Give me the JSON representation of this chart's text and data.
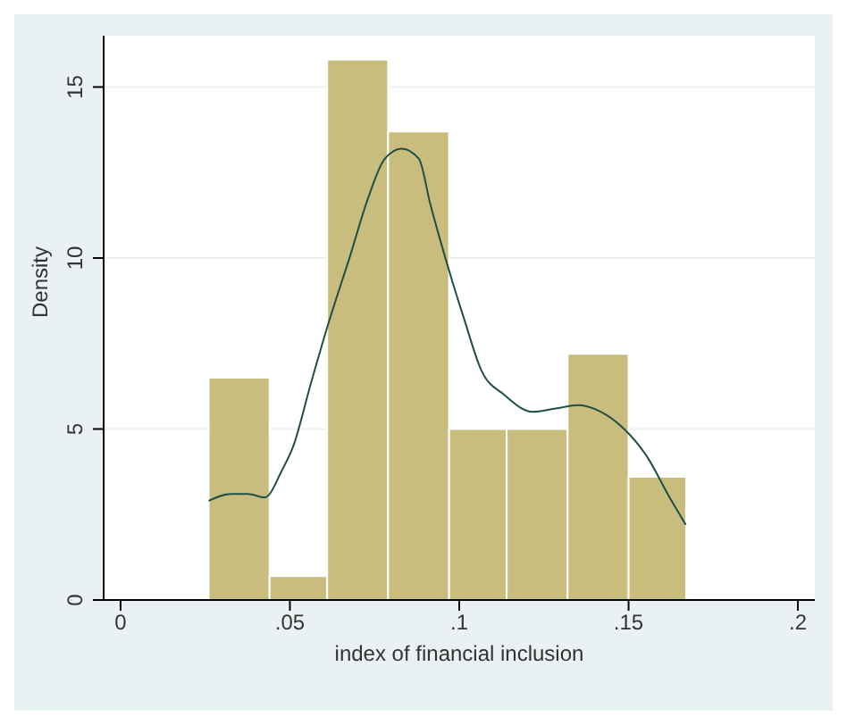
{
  "chart_data": {
    "type": "histogram",
    "xlabel": "index of financial inclusion",
    "ylabel": "Density",
    "bins": [
      0.026,
      0.044,
      0.061,
      0.079,
      0.097,
      0.114,
      0.132,
      0.15,
      0.167
    ],
    "values": [
      6.5,
      0.7,
      15.8,
      13.7,
      5.0,
      5.0,
      7.2,
      3.6
    ],
    "color": "#c9bd7e",
    "series": [
      {
        "type": "line",
        "color": "#1f4f45",
        "x": [
          0.026,
          0.0325,
          0.0376,
          0.0426,
          0.0477,
          0.051,
          0.0561,
          0.0611,
          0.0679,
          0.0729,
          0.078,
          0.083,
          0.0881,
          0.0914,
          0.0965,
          0.1015,
          0.1066,
          0.1133,
          0.1217,
          0.1285,
          0.1352,
          0.1419,
          0.1487,
          0.1554,
          0.1621,
          0.1669
        ],
        "values": [
          2.9,
          3.1,
          3.1,
          3.0,
          3.8,
          4.5,
          6.3,
          8.0,
          10.1,
          11.7,
          12.9,
          13.2,
          12.9,
          11.6,
          9.8,
          8.2,
          6.7,
          6.0,
          5.5,
          5.6,
          5.7,
          5.5,
          5.0,
          4.2,
          3.0,
          2.2
        ]
      }
    ],
    "xlim": [
      -0.005,
      0.205
    ],
    "xticks": [
      0,
      {
        "value": 0.05,
        "label": ".05"
      },
      {
        "value": 0.1,
        "label": ".1"
      },
      {
        "value": 0.15,
        "label": ".15"
      },
      {
        "value": 0.2,
        "label": ".2"
      }
    ],
    "ylim": [
      0,
      16.5
    ],
    "yticks": [
      0,
      5,
      10,
      15
    ],
    "grid": "y",
    "line_style": "solid",
    "marker": "none"
  }
}
